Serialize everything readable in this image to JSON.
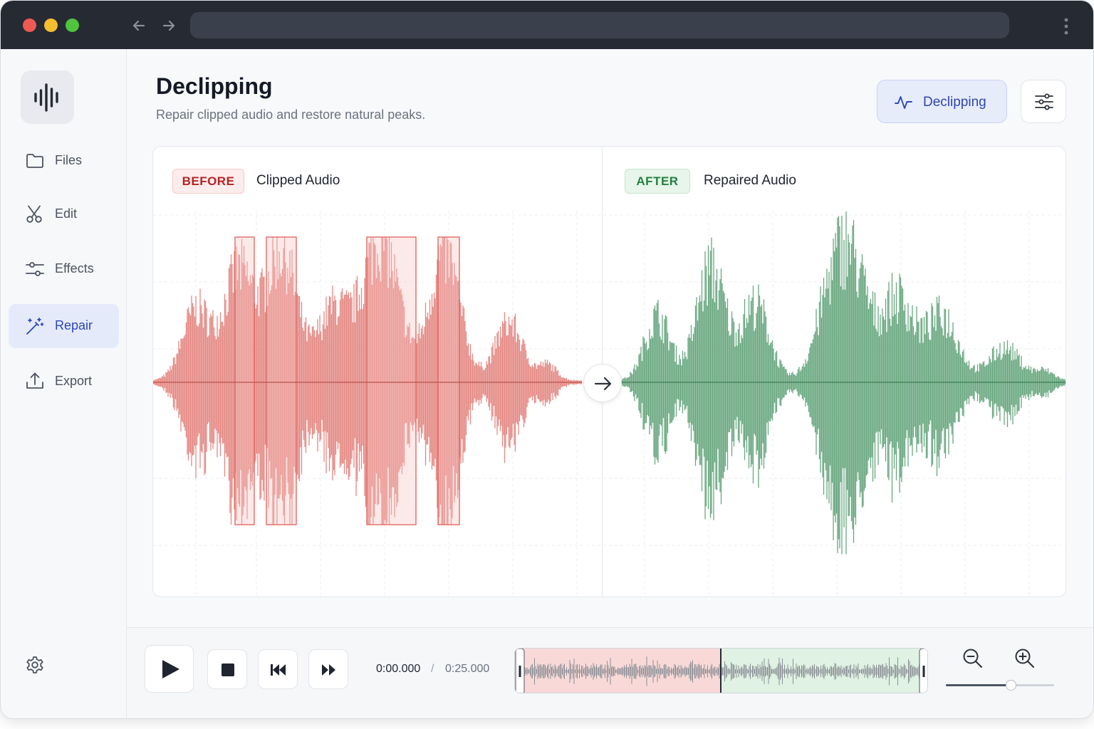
{
  "app": {
    "header": {
      "title": "Declipping",
      "subtitle": "Repair clipped audio and restore natural peaks.",
      "mode_button": {
        "label": "Declipping",
        "icon": "activity-icon"
      },
      "settings_button": {
        "icon": "sliders-icon"
      }
    },
    "sidebar": {
      "logo_icon": "waveform-logo-icon",
      "items": [
        {
          "label": "Files",
          "icon": "folder-icon",
          "active": false
        },
        {
          "label": "Edit",
          "icon": "scissors-icon",
          "active": false
        },
        {
          "label": "Effects",
          "icon": "sliders-icon",
          "active": false
        },
        {
          "label": "Repair",
          "icon": "magic-wand-icon",
          "active": true
        },
        {
          "label": "Export",
          "icon": "upload-icon",
          "active": false
        }
      ],
      "settings_icon": "gear-icon"
    },
    "compare": {
      "before": {
        "badge": "BEFORE",
        "title": "Clipped Audio",
        "color": "#e0746f"
      },
      "after": {
        "badge": "AFTER",
        "title": "Repaired Audio",
        "color": "#5a9e73"
      }
    },
    "transport": {
      "current_time": "0:00.000",
      "separator": "/",
      "total_time": "0:25.000",
      "zoom_level": 0.6
    }
  },
  "colors": {
    "accent": "#2e46b8",
    "before": "#e0746f",
    "after": "#5a9e73",
    "titlebar": "#252a33"
  }
}
